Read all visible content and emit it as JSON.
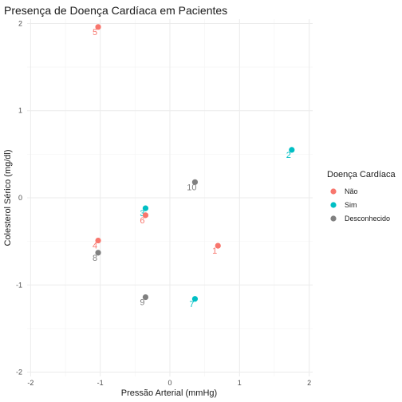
{
  "chart_data": {
    "type": "scatter",
    "title": "Presença de Doença Cardíaca em Pacientes",
    "xlabel": "Pressão Arterial (mmHg)",
    "ylabel": "Colesterol Sérico (mg/dl)",
    "xlim": [
      -2.05,
      2.05
    ],
    "ylim": [
      -2.05,
      2.05
    ],
    "x_ticks": [
      -2,
      -1,
      0,
      1,
      2
    ],
    "y_ticks": [
      -2,
      -1,
      0,
      1,
      2
    ],
    "grid": true,
    "legend": {
      "title": "Doença Cardíaca",
      "position": "right",
      "entries": [
        {
          "label": "Não",
          "color": "#F8766D"
        },
        {
          "label": "Sim",
          "color": "#00BFC4"
        },
        {
          "label": "Desconhecido",
          "color": "#808080"
        }
      ]
    },
    "points": [
      {
        "label": "1",
        "x": 0.69,
        "y": -0.55,
        "group": "Não"
      },
      {
        "label": "2",
        "x": 1.75,
        "y": 0.55,
        "group": "Sim"
      },
      {
        "label": "3",
        "x": -0.35,
        "y": -0.12,
        "group": "Sim"
      },
      {
        "label": "4",
        "x": -1.03,
        "y": -0.49,
        "group": "Não"
      },
      {
        "label": "5",
        "x": -1.03,
        "y": 1.96,
        "group": "Não"
      },
      {
        "label": "6",
        "x": -0.35,
        "y": -0.2,
        "group": "Não"
      },
      {
        "label": "7",
        "x": 0.36,
        "y": -1.16,
        "group": "Sim"
      },
      {
        "label": "8",
        "x": -1.03,
        "y": -0.63,
        "group": "Desconhecido"
      },
      {
        "label": "9",
        "x": -0.35,
        "y": -1.14,
        "group": "Desconhecido"
      },
      {
        "label": "10",
        "x": 0.36,
        "y": 0.18,
        "group": "Desconhecido"
      }
    ]
  }
}
